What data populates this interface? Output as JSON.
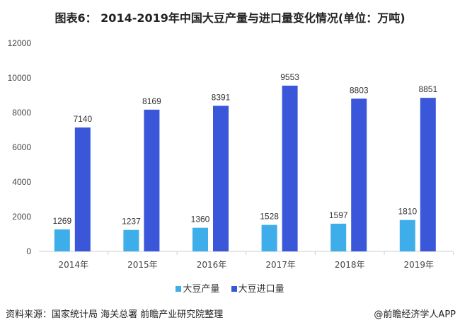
{
  "title": "图表6： 2014-2019年中国大豆产量与进口量变化情况(单位：万吨)",
  "source": "资料来源：国家统计局 海关总署 前瞻产业研究院整理",
  "credit": "@前瞻经济学人APP",
  "chart_data": {
    "type": "bar",
    "title": "图表6： 2014-2019年中国大豆产量与进口量变化情况(单位：万吨)",
    "categories": [
      "2014年",
      "2015年",
      "2016年",
      "2017年",
      "2018年",
      "2019年"
    ],
    "series": [
      {
        "name": "大豆产量",
        "values": [
          1269,
          1237,
          1360,
          1528,
          1597,
          1810
        ],
        "color": "#3eaeea"
      },
      {
        "name": "大豆进口量",
        "values": [
          7140,
          8169,
          8391,
          9553,
          8803,
          8851
        ],
        "color": "#3a56d9"
      }
    ],
    "ylim": [
      0,
      12000
    ],
    "yticks": [
      0,
      2000,
      4000,
      6000,
      8000,
      10000,
      12000
    ],
    "grid": false,
    "legend": "bottom"
  }
}
